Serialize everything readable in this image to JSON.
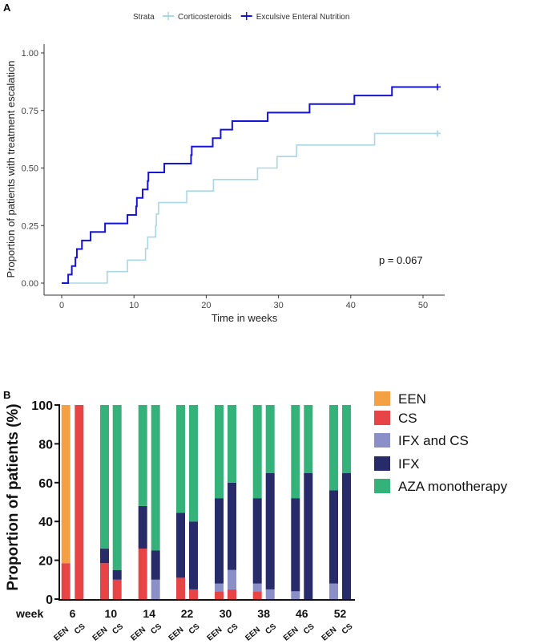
{
  "colors": {
    "een_curve": "#1414d6",
    "cs_curve": "#a8d8e6",
    "EEN": "#f5a043",
    "CS": "#e84446",
    "IFX and CS": "#8b8fc8",
    "IFX": "#272b6a",
    "AZA monotherapy": "#35b27a"
  },
  "chart_data": [
    {
      "panel": "A",
      "type": "line",
      "legend_title": "Strata",
      "legend_position": "top",
      "xlabel": "Time in weeks",
      "ylabel": "Proportion of patients with treatment escalation",
      "xlim": [
        -2.5,
        54
      ],
      "ylim": [
        0,
        1.05
      ],
      "xticks": [
        "0",
        "10",
        "20",
        "30",
        "40",
        "50"
      ],
      "yticks": [
        "0.00",
        "0.25",
        "0.50",
        "0.75",
        "1.00"
      ],
      "annotation": "p = 0.067",
      "series": [
        {
          "name": "Corticosteroids",
          "step": true,
          "end": 52,
          "censor_mark": true,
          "x": [
            0,
            6.3,
            9.1,
            11.6,
            11.9,
            13.0,
            13.1,
            13.4,
            17.3,
            21.0,
            27.1,
            29.8,
            32.5,
            43.3
          ],
          "y": [
            0,
            0.05,
            0.1,
            0.15,
            0.2,
            0.25,
            0.3,
            0.35,
            0.4,
            0.45,
            0.5,
            0.55,
            0.6,
            0.65
          ]
        },
        {
          "name": "Exculsive Enteral Nutrition",
          "step": true,
          "end": 52,
          "censor_mark": true,
          "x": [
            0,
            0.9,
            1.4,
            1.9,
            2.1,
            2.8,
            4.0,
            6.0,
            9.1,
            10.3,
            10.4,
            11.2,
            11.9,
            12.0,
            14.2,
            17.9,
            18.0,
            20.9,
            22.0,
            23.6,
            28.5,
            34.3,
            40.5,
            45.7
          ],
          "y": [
            0,
            0.037,
            0.074,
            0.111,
            0.148,
            0.185,
            0.222,
            0.259,
            0.296,
            0.333,
            0.37,
            0.407,
            0.444,
            0.481,
            0.519,
            0.556,
            0.593,
            0.63,
            0.667,
            0.704,
            0.741,
            0.778,
            0.815,
            0.852
          ]
        }
      ]
    },
    {
      "panel": "B",
      "type": "bar",
      "stacked": true,
      "ylabel": "Proportion of patients (%)",
      "xlabel_prefix": "week",
      "ylim": [
        0,
        100
      ],
      "yticks": [
        "0",
        "20",
        "40",
        "60",
        "80",
        "100"
      ],
      "legend_position": "right",
      "legend": [
        "EEN",
        "CS",
        "IFX and CS",
        "IFX",
        "AZA monotherapy"
      ],
      "categories": [
        "6",
        "10",
        "14",
        "22",
        "30",
        "38",
        "46",
        "52"
      ],
      "groups": [
        "EEN",
        "CS"
      ],
      "stack_order": [
        "CS",
        "IFX and CS",
        "IFX",
        "AZA monotherapy",
        "EEN"
      ],
      "bars": [
        {
          "week": "6",
          "group": "EEN",
          "CS": 18.5,
          "IFX and CS": 0,
          "IFX": 0,
          "AZA monotherapy": 0,
          "EEN": 81.5
        },
        {
          "week": "6",
          "group": "CS",
          "CS": 100,
          "IFX and CS": 0,
          "IFX": 0,
          "AZA monotherapy": 0,
          "EEN": 0
        },
        {
          "week": "10",
          "group": "EEN",
          "CS": 18.5,
          "IFX and CS": 0,
          "IFX": 7.5,
          "AZA monotherapy": 74,
          "EEN": 0
        },
        {
          "week": "10",
          "group": "CS",
          "CS": 10,
          "IFX and CS": 0,
          "IFX": 5,
          "AZA monotherapy": 85,
          "EEN": 0
        },
        {
          "week": "14",
          "group": "EEN",
          "CS": 26,
          "IFX and CS": 0,
          "IFX": 22,
          "AZA monotherapy": 52,
          "EEN": 0
        },
        {
          "week": "14",
          "group": "CS",
          "CS": 0,
          "IFX and CS": 10,
          "IFX": 15,
          "AZA monotherapy": 75,
          "EEN": 0
        },
        {
          "week": "22",
          "group": "EEN",
          "CS": 11,
          "IFX and CS": 0,
          "IFX": 33.5,
          "AZA monotherapy": 55.5,
          "EEN": 0
        },
        {
          "week": "22",
          "group": "CS",
          "CS": 5,
          "IFX and CS": 0,
          "IFX": 35,
          "AZA monotherapy": 60,
          "EEN": 0
        },
        {
          "week": "30",
          "group": "EEN",
          "CS": 4,
          "IFX and CS": 4,
          "IFX": 44,
          "AZA monotherapy": 48,
          "EEN": 0
        },
        {
          "week": "30",
          "group": "CS",
          "CS": 5,
          "IFX and CS": 10,
          "IFX": 45,
          "AZA monotherapy": 40,
          "EEN": 0
        },
        {
          "week": "38",
          "group": "EEN",
          "CS": 4,
          "IFX and CS": 4,
          "IFX": 44,
          "AZA monotherapy": 48,
          "EEN": 0
        },
        {
          "week": "38",
          "group": "CS",
          "CS": 0,
          "IFX and CS": 5,
          "IFX": 60,
          "AZA monotherapy": 35,
          "EEN": 0
        },
        {
          "week": "46",
          "group": "EEN",
          "CS": 0,
          "IFX and CS": 4,
          "IFX": 48,
          "AZA monotherapy": 48,
          "EEN": 0
        },
        {
          "week": "46",
          "group": "CS",
          "CS": 0,
          "IFX and CS": 0,
          "IFX": 65,
          "AZA monotherapy": 35,
          "EEN": 0
        },
        {
          "week": "52",
          "group": "EEN",
          "CS": 0,
          "IFX and CS": 8,
          "IFX": 48,
          "AZA monotherapy": 44,
          "EEN": 0
        },
        {
          "week": "52",
          "group": "CS",
          "CS": 0,
          "IFX and CS": 0,
          "IFX": 65,
          "AZA monotherapy": 35,
          "EEN": 0
        }
      ]
    }
  ],
  "panel_labels": {
    "a": "A",
    "b": "B"
  }
}
